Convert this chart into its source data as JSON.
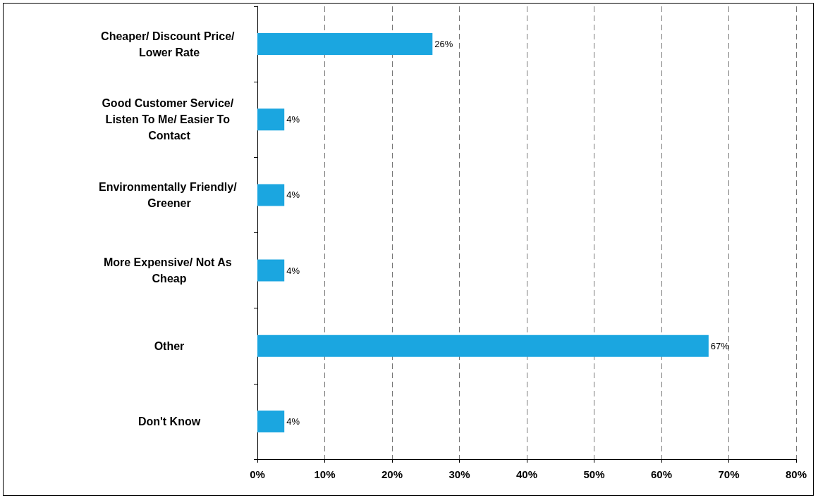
{
  "chart_data": {
    "type": "bar",
    "orientation": "horizontal",
    "categories": [
      "Cheaper/ Discount Price/ Lower Rate",
      "Good Customer Service/ Listen To Me/ Easier To Contact",
      "Environmentally Friendly/ Greener",
      "More Expensive/ Not As Cheap",
      "Other",
      "Don't Know"
    ],
    "values": [
      26,
      4,
      4,
      4,
      67,
      4
    ],
    "value_labels": [
      "26%",
      "4%",
      "4%",
      "4%",
      "67%",
      "4%"
    ],
    "color": "#1ba6e0",
    "xlim": [
      0,
      80
    ],
    "xticks": [
      {
        "value": 0,
        "label": "0%"
      },
      {
        "value": 10,
        "label": "10%"
      },
      {
        "value": 20,
        "label": "20%"
      },
      {
        "value": 30,
        "label": "30%"
      },
      {
        "value": 40,
        "label": "40%"
      },
      {
        "value": 50,
        "label": "50%"
      },
      {
        "value": 60,
        "label": "60%"
      },
      {
        "value": 70,
        "label": "70%"
      },
      {
        "value": 80,
        "label": "80%"
      }
    ],
    "grid": "x"
  }
}
